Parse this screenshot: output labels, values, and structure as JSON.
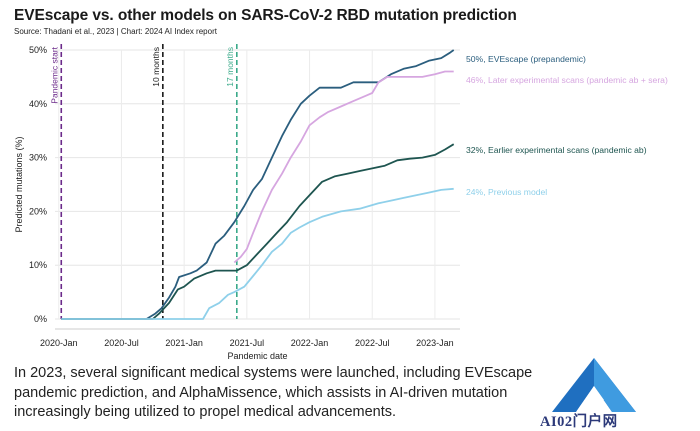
{
  "header": {
    "title": "EVEscape vs. other models on SARS-CoV-2 RBD mutation prediction",
    "subtitle": "Source: Thadani et al., 2023 | Chart: 2024 AI Index report"
  },
  "caption": {
    "lines": [
      "In 2023, several significant medical systems were launched, including EVEscape",
      "pandemic prediction, and AlphaMissence, which assists in AI-driven mutation",
      "increasingly being utilized to propel medical advancements."
    ]
  },
  "watermark": {
    "text": "AI02门户网"
  },
  "colors": {
    "evescape": "#2b5e7e",
    "later": "#d6a6e0",
    "earlier": "#1e5550",
    "previous": "#8fd0ea",
    "pandemic_start": "#6b2a8a",
    "ten_months": "#1a1a1a",
    "seventeen_months": "#3aaa8a"
  },
  "chart_data": {
    "type": "line",
    "title": "EVEscape vs. other models on SARS-CoV-2 RBD mutation prediction",
    "xlabel": "Pandemic date",
    "ylabel": "Predicted mutations (%)",
    "ylim": [
      0,
      50
    ],
    "xlim": [
      2019.97,
      2023.2
    ],
    "grid": true,
    "y_ticks": [
      0,
      10,
      20,
      30,
      40,
      50
    ],
    "y_tick_labels": [
      "0%",
      "10%",
      "20%",
      "30%",
      "40%",
      "50%"
    ],
    "x_ticks": [
      {
        "x": 2020.0,
        "label": "2020-Jan"
      },
      {
        "x": 2020.5,
        "label": "2020-Jul"
      },
      {
        "x": 2021.0,
        "label": "2021-Jan"
      },
      {
        "x": 2021.5,
        "label": "2021-Jul"
      },
      {
        "x": 2022.0,
        "label": "2022-Jan"
      },
      {
        "x": 2022.5,
        "label": "2022-Jul"
      },
      {
        "x": 2023.0,
        "label": "2023-Jan"
      }
    ],
    "vlines": [
      {
        "x": 2020.02,
        "label": "Pandemic start",
        "color_key": "pandemic_start"
      },
      {
        "x": 2020.83,
        "label": "10 months",
        "color_key": "ten_months"
      },
      {
        "x": 2021.42,
        "label": "17 months",
        "color_key": "seventeen_months"
      }
    ],
    "series": [
      {
        "name": "EVEscape (prepandemic)",
        "end_label": "50%, EVEscape (prepandemic)",
        "color_key": "evescape",
        "points": [
          [
            2020.02,
            0
          ],
          [
            2020.7,
            0
          ],
          [
            2020.77,
            1
          ],
          [
            2020.82,
            2
          ],
          [
            2020.88,
            4
          ],
          [
            2020.93,
            6
          ],
          [
            2020.96,
            7.8
          ],
          [
            2021.05,
            8.5
          ],
          [
            2021.1,
            9
          ],
          [
            2021.18,
            10.5
          ],
          [
            2021.25,
            14
          ],
          [
            2021.32,
            15.5
          ],
          [
            2021.4,
            18
          ],
          [
            2021.48,
            21
          ],
          [
            2021.55,
            24
          ],
          [
            2021.62,
            26
          ],
          [
            2021.7,
            30
          ],
          [
            2021.78,
            34
          ],
          [
            2021.85,
            37
          ],
          [
            2021.93,
            40
          ],
          [
            2022.0,
            41.5
          ],
          [
            2022.08,
            43
          ],
          [
            2022.17,
            43
          ],
          [
            2022.25,
            43
          ],
          [
            2022.35,
            44
          ],
          [
            2022.45,
            44
          ],
          [
            2022.55,
            44
          ],
          [
            2022.65,
            45.5
          ],
          [
            2022.75,
            46.5
          ],
          [
            2022.85,
            47
          ],
          [
            2022.95,
            48
          ],
          [
            2023.05,
            48.5
          ],
          [
            2023.12,
            49.5
          ],
          [
            2023.15,
            50
          ]
        ]
      },
      {
        "name": "Later experimental scans (pandemic ab + sera)",
        "end_label": "46%, Later experimental scans (pandemic ab + sera)",
        "color_key": "later",
        "points": [
          [
            2021.4,
            10.5
          ],
          [
            2021.45,
            11.5
          ],
          [
            2021.5,
            13
          ],
          [
            2021.55,
            16
          ],
          [
            2021.62,
            20
          ],
          [
            2021.7,
            24
          ],
          [
            2021.78,
            27
          ],
          [
            2021.85,
            30
          ],
          [
            2021.93,
            33
          ],
          [
            2022.0,
            36
          ],
          [
            2022.08,
            37.5
          ],
          [
            2022.15,
            38.5
          ],
          [
            2022.25,
            39.5
          ],
          [
            2022.35,
            40.5
          ],
          [
            2022.45,
            41.5
          ],
          [
            2022.5,
            42
          ],
          [
            2022.55,
            44
          ],
          [
            2022.62,
            45
          ],
          [
            2022.7,
            45
          ],
          [
            2022.8,
            45
          ],
          [
            2022.9,
            45
          ],
          [
            2023.0,
            45.5
          ],
          [
            2023.08,
            46
          ],
          [
            2023.15,
            46
          ]
        ]
      },
      {
        "name": "Earlier experimental scans (pandemic ab)",
        "end_label": "32%, Earlier experimental scans (pandemic ab)",
        "color_key": "earlier",
        "points": [
          [
            2020.02,
            0
          ],
          [
            2020.75,
            0
          ],
          [
            2020.8,
            1
          ],
          [
            2020.88,
            3
          ],
          [
            2020.95,
            5.5
          ],
          [
            2021.0,
            6
          ],
          [
            2021.08,
            7.5
          ],
          [
            2021.18,
            8.5
          ],
          [
            2021.25,
            9
          ],
          [
            2021.35,
            9
          ],
          [
            2021.42,
            9
          ],
          [
            2021.5,
            10
          ],
          [
            2021.58,
            12
          ],
          [
            2021.66,
            14
          ],
          [
            2021.74,
            16
          ],
          [
            2021.82,
            18
          ],
          [
            2021.92,
            21
          ],
          [
            2022.0,
            23
          ],
          [
            2022.1,
            25.5
          ],
          [
            2022.2,
            26.5
          ],
          [
            2022.3,
            27
          ],
          [
            2022.4,
            27.5
          ],
          [
            2022.5,
            28
          ],
          [
            2022.6,
            28.5
          ],
          [
            2022.7,
            29.5
          ],
          [
            2022.8,
            29.8
          ],
          [
            2022.9,
            30
          ],
          [
            2023.0,
            30.5
          ],
          [
            2023.08,
            31.5
          ],
          [
            2023.15,
            32.5
          ]
        ]
      },
      {
        "name": "Previous model",
        "end_label": "24%, Previous model",
        "color_key": "previous",
        "points": [
          [
            2020.02,
            0
          ],
          [
            2021.15,
            0
          ],
          [
            2021.2,
            2
          ],
          [
            2021.28,
            3
          ],
          [
            2021.35,
            4.5
          ],
          [
            2021.4,
            5
          ],
          [
            2021.48,
            6
          ],
          [
            2021.55,
            8
          ],
          [
            2021.62,
            10
          ],
          [
            2021.7,
            12.5
          ],
          [
            2021.78,
            14
          ],
          [
            2021.85,
            16
          ],
          [
            2021.92,
            17
          ],
          [
            2022.0,
            18
          ],
          [
            2022.1,
            19
          ],
          [
            2022.25,
            20
          ],
          [
            2022.4,
            20.5
          ],
          [
            2022.55,
            21.5
          ],
          [
            2022.65,
            22
          ],
          [
            2022.75,
            22.5
          ],
          [
            2022.85,
            23
          ],
          [
            2022.95,
            23.5
          ],
          [
            2023.05,
            24
          ],
          [
            2023.15,
            24.2
          ]
        ]
      }
    ]
  }
}
